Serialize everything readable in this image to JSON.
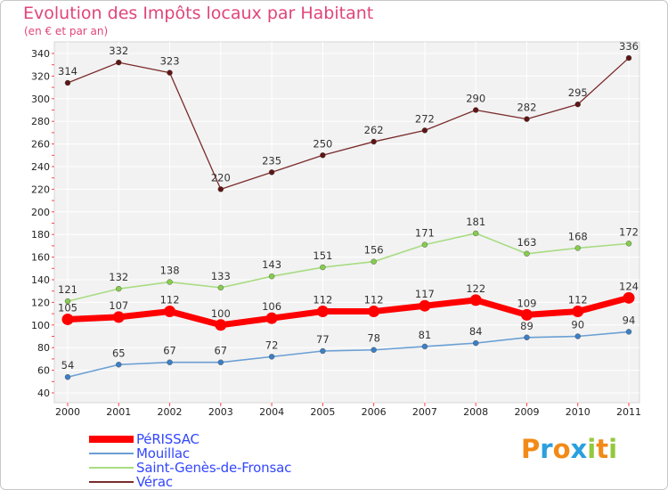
{
  "title": "Evolution des Impôts locaux par Habitant",
  "subtitle": "(en € et par an)",
  "logo": {
    "text": "Proxiti",
    "letters": [
      {
        "ch": "P",
        "color": "#f28a18"
      },
      {
        "ch": "r",
        "color": "#2aa0de"
      },
      {
        "ch": "o",
        "color": "#f28a18"
      },
      {
        "ch": "x",
        "color": "#2aa0de"
      },
      {
        "ch": "i",
        "color": "#94c83d"
      },
      {
        "ch": "t",
        "color": "#f28a18"
      },
      {
        "ch": "i",
        "color": "#94c83d"
      }
    ]
  },
  "chart_data": {
    "type": "line",
    "title": "Evolution des Impôts locaux par Habitant",
    "subtitle": "(en € et par an)",
    "categories": [
      "2000",
      "2001",
      "2002",
      "2003",
      "2004",
      "2005",
      "2006",
      "2007",
      "2008",
      "2009",
      "2010",
      "2011"
    ],
    "ylim": [
      40,
      340
    ],
    "yticks": [
      40,
      60,
      80,
      100,
      120,
      140,
      160,
      180,
      200,
      220,
      240,
      260,
      280,
      300,
      320,
      340
    ],
    "grid": true,
    "legend_position": "bottom-left",
    "series": [
      {
        "name": "PéRISSAC",
        "color": "#ff0000",
        "marker": "#ff0000",
        "values": [
          105,
          107,
          112,
          100,
          106,
          112,
          112,
          117,
          122,
          109,
          112,
          124
        ]
      },
      {
        "name": "Mouillac",
        "color": "#6a9fd4",
        "marker": "#3d7fc4",
        "values": [
          54,
          65,
          67,
          67,
          72,
          77,
          78,
          81,
          84,
          89,
          90,
          94
        ]
      },
      {
        "name": "Saint-Genès-de-Fronsac",
        "color": "#a8dc82",
        "marker": "#86cc4e",
        "values": [
          121,
          132,
          138,
          133,
          143,
          151,
          156,
          171,
          181,
          163,
          168,
          172
        ]
      },
      {
        "name": "Vérac",
        "color": "#7a2a2a",
        "marker": "#5e1515",
        "values": [
          314,
          332,
          323,
          220,
          235,
          250,
          262,
          272,
          290,
          282,
          295,
          336
        ]
      }
    ]
  }
}
